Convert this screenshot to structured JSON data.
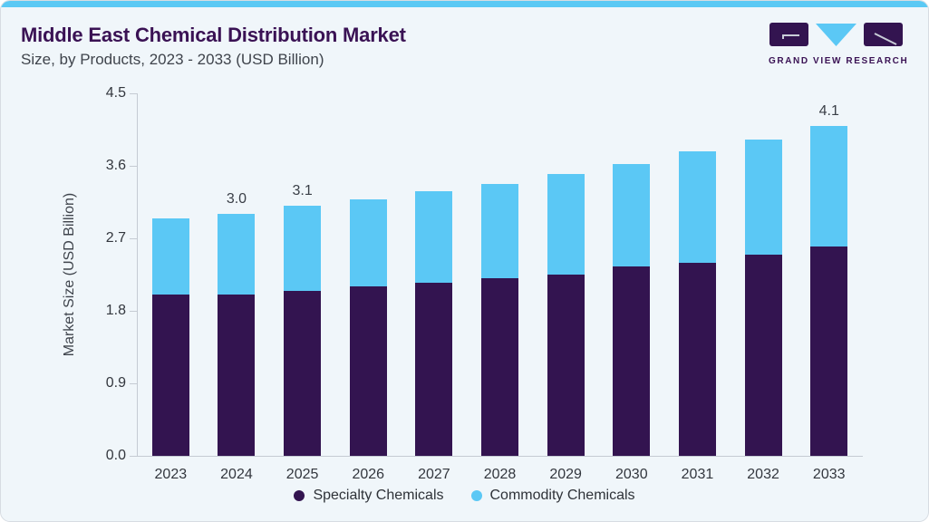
{
  "header": {
    "title": "Middle East Chemical Distribution Market",
    "subtitle": "Size, by Products, 2023 - 2033 (USD Billion)"
  },
  "logo": {
    "brand": "GRAND VIEW RESEARCH",
    "block_color": "#331450",
    "triangle_color": "#5bc8f5"
  },
  "chart_data": {
    "type": "bar",
    "stacked": true,
    "title": "Middle East Chemical Distribution Market",
    "subtitle": "Size, by Products, 2023 - 2033 (USD Billion)",
    "xlabel": "",
    "ylabel": "Market Size (USD Billion)",
    "ylim": [
      0,
      4.5
    ],
    "yticks": [
      0.0,
      0.9,
      1.8,
      2.7,
      3.6,
      4.5
    ],
    "grid": false,
    "legend_position": "bottom",
    "categories": [
      "2023",
      "2024",
      "2025",
      "2026",
      "2027",
      "2028",
      "2029",
      "2030",
      "2031",
      "2032",
      "2033"
    ],
    "series": [
      {
        "name": "Specialty Chemicals",
        "color": "#331450",
        "values": [
          2.0,
          2.0,
          2.05,
          2.1,
          2.15,
          2.2,
          2.25,
          2.35,
          2.4,
          2.5,
          2.6
        ]
      },
      {
        "name": "Commodity Chemicals",
        "color": "#5bc8f5",
        "values": [
          0.95,
          1.0,
          1.05,
          1.08,
          1.13,
          1.17,
          1.25,
          1.27,
          1.38,
          1.43,
          1.5
        ]
      }
    ],
    "total_labels": [
      "",
      "3.0",
      "3.1",
      "",
      "",
      "",
      "",
      "",
      "",
      "",
      "4.1"
    ]
  },
  "theme": {
    "background": "#f0f6fa",
    "top_bar": "#5bc9f4",
    "title_color": "#3a1254",
    "text_color": "#3f444c",
    "axis_color": "#c5cbd3",
    "specialty_color": "#331450",
    "commodity_color": "#5bc8f5"
  }
}
